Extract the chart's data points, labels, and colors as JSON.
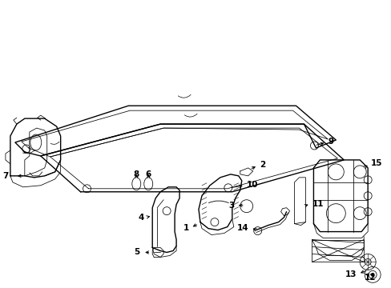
{
  "background_color": "#ffffff",
  "line_color": "#000000",
  "lw_main": 1.0,
  "lw_thin": 0.55
}
